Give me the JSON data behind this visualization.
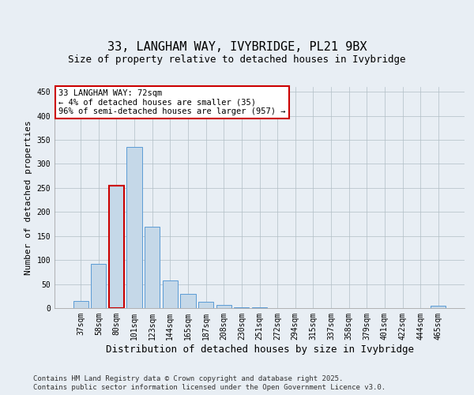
{
  "title": "33, LANGHAM WAY, IVYBRIDGE, PL21 9BX",
  "subtitle": "Size of property relative to detached houses in Ivybridge",
  "xlabel": "Distribution of detached houses by size in Ivybridge",
  "ylabel": "Number of detached properties",
  "categories": [
    "37sqm",
    "58sqm",
    "80sqm",
    "101sqm",
    "123sqm",
    "144sqm",
    "165sqm",
    "187sqm",
    "208sqm",
    "230sqm",
    "251sqm",
    "272sqm",
    "294sqm",
    "315sqm",
    "337sqm",
    "358sqm",
    "379sqm",
    "401sqm",
    "422sqm",
    "444sqm",
    "465sqm"
  ],
  "values": [
    14,
    92,
    255,
    335,
    170,
    57,
    30,
    13,
    7,
    2,
    1,
    0,
    0,
    0,
    0,
    0,
    0,
    0,
    0,
    0,
    5
  ],
  "bar_color": "#c5d8e8",
  "bar_edge_color": "#5b9bd5",
  "highlight_index": 2,
  "highlight_color": "#cc0000",
  "annotation_text": "33 LANGHAM WAY: 72sqm\n← 4% of detached houses are smaller (35)\n96% of semi-detached houses are larger (957) →",
  "annotation_box_color": "#ffffff",
  "annotation_box_edge": "#cc0000",
  "ylim": [
    0,
    460
  ],
  "yticks": [
    0,
    50,
    100,
    150,
    200,
    250,
    300,
    350,
    400,
    450
  ],
  "background_color": "#e8eef4",
  "footer_line1": "Contains HM Land Registry data © Crown copyright and database right 2025.",
  "footer_line2": "Contains public sector information licensed under the Open Government Licence v3.0.",
  "title_fontsize": 11,
  "subtitle_fontsize": 9,
  "xlabel_fontsize": 9,
  "ylabel_fontsize": 8,
  "tick_fontsize": 7,
  "annotation_fontsize": 7.5,
  "footer_fontsize": 6.5
}
